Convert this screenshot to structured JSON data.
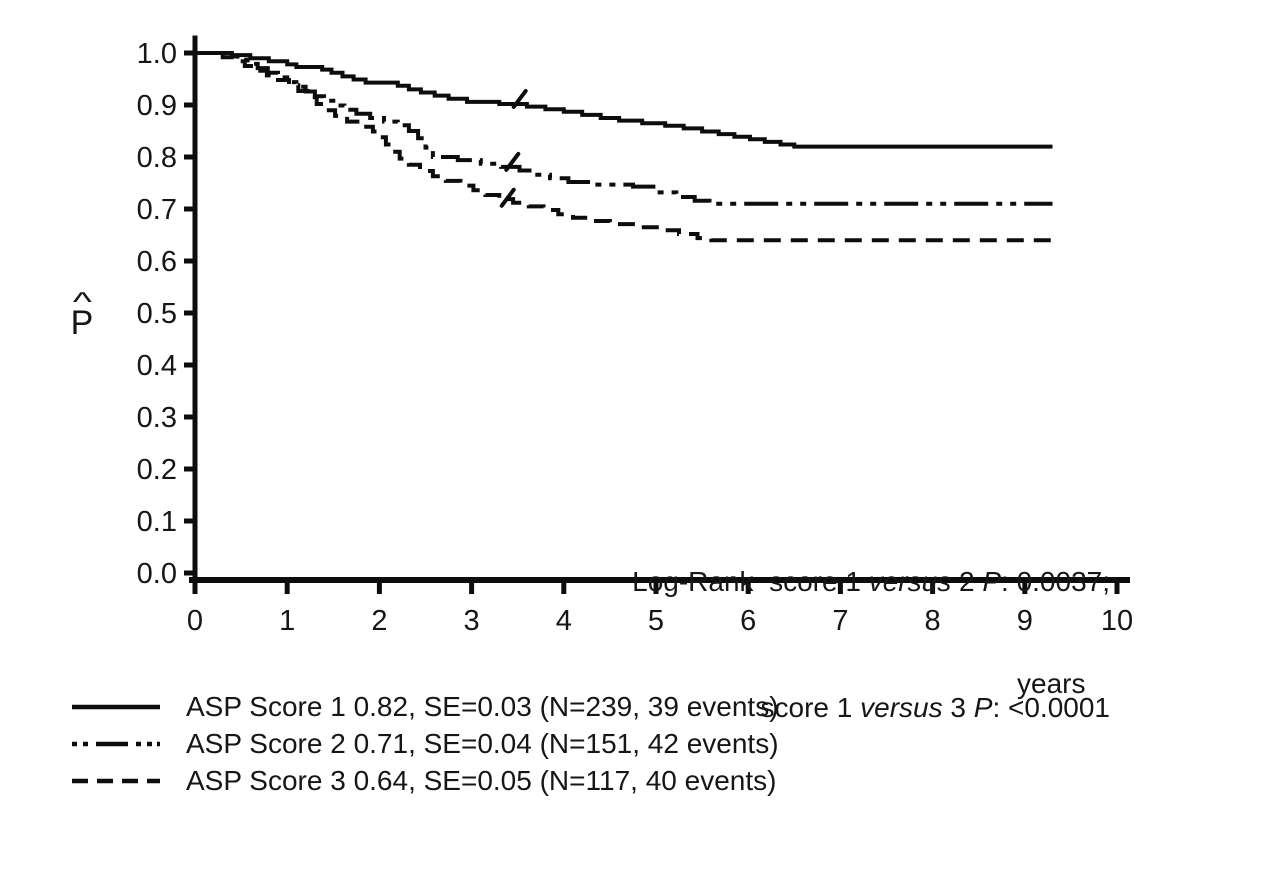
{
  "figure": {
    "background": "#ffffff",
    "ink": "#0d0d0d",
    "text_color": "#161616"
  },
  "chart_data": {
    "type": "line",
    "subtype": "kaplan-meier-step-survival",
    "title": "",
    "xlabel": "years",
    "ylabel_accent": "^",
    "ylabel_letter": "P",
    "xlim": [
      0,
      10
    ],
    "ylim": [
      0.0,
      1.0
    ],
    "grid": false,
    "legend_position": "bottom-left",
    "x_ticks": [
      "0",
      "1",
      "2",
      "3",
      "4",
      "5",
      "6",
      "7",
      "8",
      "9",
      "10"
    ],
    "y_ticks": [
      "0.0",
      "0.1",
      "0.2",
      "0.3",
      "0.4",
      "0.5",
      "0.6",
      "0.7",
      "0.8",
      "0.9",
      "1.0"
    ],
    "series": [
      {
        "name": "ASP Score 1",
        "line_style": "solid",
        "final_estimate": 0.82,
        "se": 0.03,
        "n": 239,
        "events": 39,
        "censor_marks": [
          [
            3.5,
            0.902
          ]
        ],
        "points": [
          [
            0,
            1.0
          ],
          [
            0.4,
            0.996
          ],
          [
            0.6,
            0.99
          ],
          [
            0.8,
            0.984
          ],
          [
            1.0,
            0.978
          ],
          [
            1.1,
            0.973
          ],
          [
            1.38,
            0.968
          ],
          [
            1.48,
            0.962
          ],
          [
            1.6,
            0.955
          ],
          [
            1.72,
            0.949
          ],
          [
            1.85,
            0.943
          ],
          [
            2.2,
            0.937
          ],
          [
            2.32,
            0.93
          ],
          [
            2.45,
            0.924
          ],
          [
            2.6,
            0.918
          ],
          [
            2.75,
            0.912
          ],
          [
            2.95,
            0.906
          ],
          [
            3.3,
            0.902
          ],
          [
            3.6,
            0.897
          ],
          [
            3.8,
            0.892
          ],
          [
            4.0,
            0.887
          ],
          [
            4.2,
            0.881
          ],
          [
            4.4,
            0.875
          ],
          [
            4.6,
            0.87
          ],
          [
            4.85,
            0.865
          ],
          [
            5.1,
            0.86
          ],
          [
            5.3,
            0.855
          ],
          [
            5.5,
            0.849
          ],
          [
            5.68,
            0.844
          ],
          [
            5.85,
            0.839
          ],
          [
            6.02,
            0.834
          ],
          [
            6.18,
            0.829
          ],
          [
            6.35,
            0.824
          ],
          [
            6.5,
            0.82
          ],
          [
            9.3,
            0.82
          ]
        ]
      },
      {
        "name": "ASP Score 2",
        "line_style": "dash-dot-dot",
        "final_estimate": 0.71,
        "se": 0.04,
        "n": 151,
        "events": 42,
        "censor_marks": [
          [
            3.42,
            0.781
          ]
        ],
        "points": [
          [
            0,
            1.0
          ],
          [
            0.35,
            0.994
          ],
          [
            0.46,
            0.987
          ],
          [
            0.57,
            0.979
          ],
          [
            0.68,
            0.971
          ],
          [
            0.79,
            0.962
          ],
          [
            0.9,
            0.953
          ],
          [
            1.0,
            0.944
          ],
          [
            1.1,
            0.935
          ],
          [
            1.2,
            0.926
          ],
          [
            1.3,
            0.917
          ],
          [
            1.4,
            0.908
          ],
          [
            1.5,
            0.899
          ],
          [
            1.62,
            0.891
          ],
          [
            1.75,
            0.883
          ],
          [
            1.9,
            0.875
          ],
          [
            2.05,
            0.868
          ],
          [
            2.2,
            0.861
          ],
          [
            2.32,
            0.85
          ],
          [
            2.42,
            0.836
          ],
          [
            2.5,
            0.818
          ],
          [
            2.58,
            0.8
          ],
          [
            2.85,
            0.794
          ],
          [
            3.1,
            0.787
          ],
          [
            3.32,
            0.781
          ],
          [
            3.52,
            0.774
          ],
          [
            3.68,
            0.766
          ],
          [
            3.85,
            0.759
          ],
          [
            4.05,
            0.752
          ],
          [
            4.3,
            0.747
          ],
          [
            4.75,
            0.743
          ],
          [
            5.0,
            0.732
          ],
          [
            5.22,
            0.723
          ],
          [
            5.42,
            0.716
          ],
          [
            5.58,
            0.71
          ],
          [
            9.3,
            0.71
          ]
        ]
      },
      {
        "name": "ASP Score 3",
        "line_style": "dashed",
        "final_estimate": 0.64,
        "se": 0.05,
        "n": 117,
        "events": 40,
        "censor_marks": [
          [
            3.37,
            0.712
          ]
        ],
        "points": [
          [
            0,
            1.0
          ],
          [
            0.3,
            0.992
          ],
          [
            0.42,
            0.984
          ],
          [
            0.54,
            0.975
          ],
          [
            0.66,
            0.966
          ],
          [
            0.78,
            0.957
          ],
          [
            0.9,
            0.948
          ],
          [
            1.02,
            0.938
          ],
          [
            1.12,
            0.927
          ],
          [
            1.22,
            0.915
          ],
          [
            1.32,
            0.902
          ],
          [
            1.42,
            0.89
          ],
          [
            1.52,
            0.879
          ],
          [
            1.65,
            0.868
          ],
          [
            1.8,
            0.858
          ],
          [
            1.93,
            0.849
          ],
          [
            2.0,
            0.838
          ],
          [
            2.07,
            0.824
          ],
          [
            2.14,
            0.81
          ],
          [
            2.22,
            0.797
          ],
          [
            2.32,
            0.785
          ],
          [
            2.44,
            0.773
          ],
          [
            2.58,
            0.763
          ],
          [
            2.72,
            0.754
          ],
          [
            2.88,
            0.745
          ],
          [
            3.02,
            0.736
          ],
          [
            3.15,
            0.727
          ],
          [
            3.3,
            0.719
          ],
          [
            3.45,
            0.712
          ],
          [
            3.62,
            0.705
          ],
          [
            3.78,
            0.698
          ],
          [
            3.94,
            0.69
          ],
          [
            4.1,
            0.683
          ],
          [
            4.28,
            0.677
          ],
          [
            4.5,
            0.671
          ],
          [
            4.8,
            0.665
          ],
          [
            5.05,
            0.659
          ],
          [
            5.25,
            0.652
          ],
          [
            5.45,
            0.644
          ],
          [
            5.6,
            0.64
          ],
          [
            9.3,
            0.64
          ]
        ]
      }
    ],
    "log_rank": [
      {
        "comparison": "score 1 versus 2",
        "p_value": "0.0037"
      },
      {
        "comparison": "score 1 versus 3",
        "p_value": "<0.0001"
      }
    ]
  },
  "annotation": {
    "line1": {
      "p1": "Log-Rank  score 1 ",
      "p2": "versus",
      "p3": " 2 ",
      "p4": "P",
      "p5": ": 0.0037;"
    },
    "line2": {
      "p1": "score 1 ",
      "p2": "versus",
      "p3": " 3 ",
      "p4": "P",
      "p5": ": <0.0001"
    }
  },
  "legend": {
    "items": [
      {
        "label": "ASP Score 1 0.82, SE=0.03 (N=239, 39 events)",
        "line_style": "solid"
      },
      {
        "label": "ASP Score 2 0.71, SE=0.04 (N=151, 42 events)",
        "line_style": "dash-dot-dot"
      },
      {
        "label": "ASP Score 3 0.64, SE=0.05 (N=117, 40 events)",
        "line_style": "dashed"
      }
    ]
  }
}
